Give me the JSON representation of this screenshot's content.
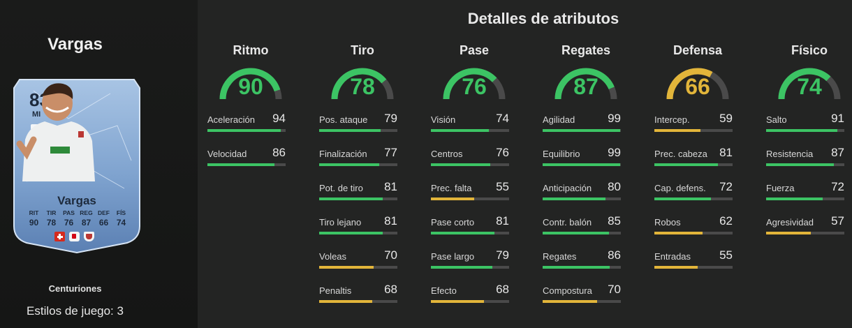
{
  "player": {
    "name": "Vargas",
    "card": {
      "rating": "83",
      "position": "MI",
      "name": "Vargas",
      "stats": [
        {
          "label": "RIT",
          "value": "90"
        },
        {
          "label": "TIR",
          "value": "78"
        },
        {
          "label": "PAS",
          "value": "76"
        },
        {
          "label": "REG",
          "value": "87"
        },
        {
          "label": "DEF",
          "value": "66"
        },
        {
          "label": "FÍS",
          "value": "74"
        }
      ]
    },
    "version": "Centuriones",
    "playstyles": "Estilos de juego: 3"
  },
  "colors": {
    "green": "#3cc464",
    "yellow": "#e2b53a",
    "track": "#4a4a4a"
  },
  "attributes": {
    "title": "Detalles de atributos",
    "categories": [
      {
        "name": "Ritmo",
        "value": 90,
        "color": "#3cc464",
        "stats": [
          {
            "name": "Aceleración",
            "value": 94,
            "color": "#3cc464"
          },
          {
            "name": "Velocidad",
            "value": 86,
            "color": "#3cc464"
          }
        ]
      },
      {
        "name": "Tiro",
        "value": 78,
        "color": "#3cc464",
        "stats": [
          {
            "name": "Pos. ataque",
            "value": 79,
            "color": "#3cc464"
          },
          {
            "name": "Finalización",
            "value": 77,
            "color": "#3cc464"
          },
          {
            "name": "Pot. de tiro",
            "value": 81,
            "color": "#3cc464"
          },
          {
            "name": "Tiro lejano",
            "value": 81,
            "color": "#3cc464"
          },
          {
            "name": "Voleas",
            "value": 70,
            "color": "#e2b53a"
          },
          {
            "name": "Penaltis",
            "value": 68,
            "color": "#e2b53a"
          }
        ]
      },
      {
        "name": "Pase",
        "value": 76,
        "color": "#3cc464",
        "stats": [
          {
            "name": "Visión",
            "value": 74,
            "color": "#3cc464"
          },
          {
            "name": "Centros",
            "value": 76,
            "color": "#3cc464"
          },
          {
            "name": "Prec. falta",
            "value": 55,
            "color": "#e2b53a"
          },
          {
            "name": "Pase corto",
            "value": 81,
            "color": "#3cc464"
          },
          {
            "name": "Pase largo",
            "value": 79,
            "color": "#3cc464"
          },
          {
            "name": "Efecto",
            "value": 68,
            "color": "#e2b53a"
          }
        ]
      },
      {
        "name": "Regates",
        "value": 87,
        "color": "#3cc464",
        "stats": [
          {
            "name": "Agilidad",
            "value": 99,
            "color": "#3cc464"
          },
          {
            "name": "Equilibrio",
            "value": 99,
            "color": "#3cc464"
          },
          {
            "name": "Anticipación",
            "value": 80,
            "color": "#3cc464"
          },
          {
            "name": "Contr. balón",
            "value": 85,
            "color": "#3cc464"
          },
          {
            "name": "Regates",
            "value": 86,
            "color": "#3cc464"
          },
          {
            "name": "Compostura",
            "value": 70,
            "color": "#e2b53a"
          }
        ]
      },
      {
        "name": "Defensa",
        "value": 66,
        "color": "#e2b53a",
        "stats": [
          {
            "name": "Intercep.",
            "value": 59,
            "color": "#e2b53a"
          },
          {
            "name": "Prec. cabeza",
            "value": 81,
            "color": "#3cc464"
          },
          {
            "name": "Cap. defens.",
            "value": 72,
            "color": "#3cc464"
          },
          {
            "name": "Robos",
            "value": 62,
            "color": "#e2b53a"
          },
          {
            "name": "Entradas",
            "value": 55,
            "color": "#e2b53a"
          }
        ]
      },
      {
        "name": "Físico",
        "value": 74,
        "color": "#3cc464",
        "stats": [
          {
            "name": "Salto",
            "value": 91,
            "color": "#3cc464"
          },
          {
            "name": "Resistencia",
            "value": 87,
            "color": "#3cc464"
          },
          {
            "name": "Fuerza",
            "value": 72,
            "color": "#3cc464"
          },
          {
            "name": "Agresividad",
            "value": 57,
            "color": "#e2b53a"
          }
        ]
      }
    ]
  }
}
